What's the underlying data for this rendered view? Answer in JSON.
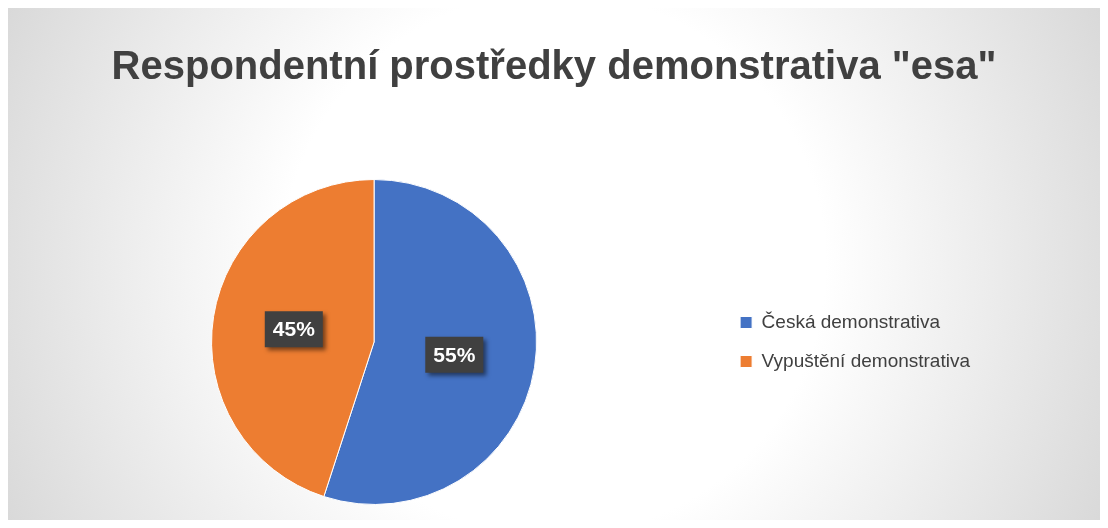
{
  "chart_data": {
    "type": "pie",
    "title": "Respondentní prostředky demonstrativa \"esa\"",
    "categories": [
      "Česká demonstrativa",
      "Vypuštění demonstrativa"
    ],
    "values": [
      55,
      45
    ],
    "colors": [
      "#4472c4",
      "#ed7d31"
    ],
    "value_labels": [
      "55%",
      "45%"
    ],
    "legend": "right"
  }
}
